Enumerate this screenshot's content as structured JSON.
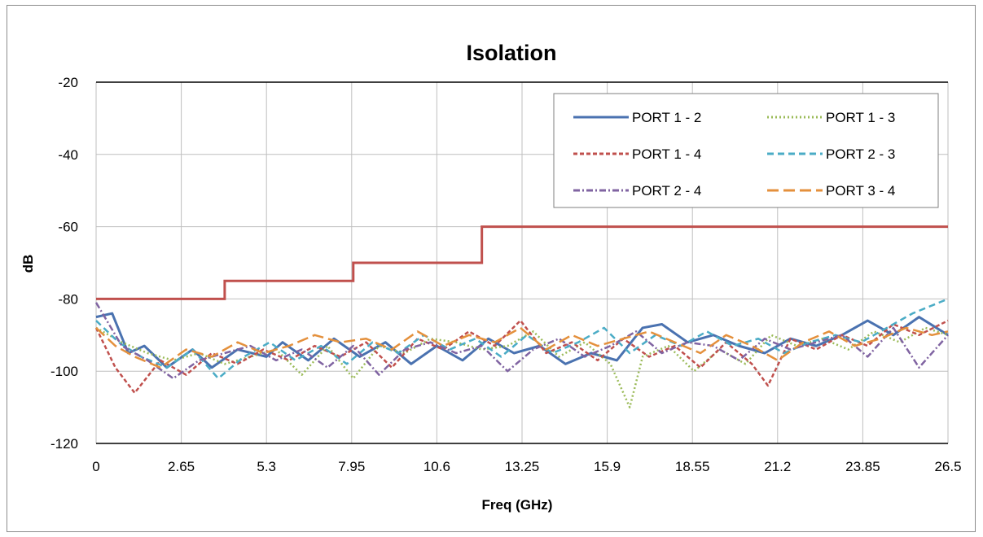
{
  "chart_data": {
    "type": "line",
    "title": "Isolation",
    "xlabel": "Freq (GHz)",
    "ylabel": "dB",
    "xlim": [
      0,
      26.5
    ],
    "ylim": [
      -120,
      -20
    ],
    "x_ticks": [
      "0",
      "2.65",
      "5.3",
      "7.95",
      "10.6",
      "13.25",
      "15.9",
      "18.55",
      "21.2",
      "23.85",
      "26.5"
    ],
    "y_ticks": [
      "-20",
      "-40",
      "-60",
      "-80",
      "-100",
      "-120"
    ],
    "grid": true,
    "legend_position": "top-right",
    "limit_line": {
      "color": "#c0504d",
      "steps": [
        [
          0,
          -80
        ],
        [
          4,
          -80
        ],
        [
          4,
          -75
        ],
        [
          8,
          -75
        ],
        [
          8,
          -70
        ],
        [
          12,
          -70
        ],
        [
          12,
          -60
        ],
        [
          26.5,
          -60
        ]
      ]
    },
    "series": [
      {
        "name": "PORT 1 - 2",
        "color": "#4a72b0",
        "dash": "",
        "width": 3,
        "x": [
          0,
          0.5,
          1,
          1.5,
          2.2,
          3,
          3.6,
          4.4,
          5.3,
          5.8,
          6.6,
          7.4,
          8.2,
          9,
          9.8,
          10.6,
          11.4,
          12.2,
          13,
          13.8,
          14.6,
          15.4,
          16.2,
          17,
          17.6,
          18.4,
          19.2,
          20,
          20.8,
          21.6,
          22.4,
          23.2,
          24,
          24.8,
          25.6,
          26.5
        ],
        "y": [
          -85,
          -84,
          -95,
          -93,
          -99,
          -94,
          -99,
          -94,
          -96,
          -92,
          -97,
          -91,
          -96,
          -92,
          -98,
          -93,
          -97,
          -91,
          -95,
          -93,
          -98,
          -95,
          -97,
          -88,
          -87,
          -92,
          -90,
          -93,
          -95,
          -91,
          -93,
          -90,
          -86,
          -90,
          -85,
          -90
        ]
      },
      {
        "name": "PORT 1 - 3",
        "color": "#9bbb59",
        "dash": "2,3",
        "width": 2.5,
        "x": [
          0,
          0.8,
          1.6,
          2.4,
          3.2,
          4,
          4.8,
          5.6,
          6.4,
          7.2,
          8,
          8.8,
          9.6,
          10.4,
          11.2,
          12,
          12.8,
          13.6,
          14.4,
          15.2,
          16,
          16.6,
          17,
          17.8,
          18.6,
          19.4,
          20.2,
          21,
          21.8,
          22.6,
          23.4,
          24.2,
          25,
          25.8,
          26.5
        ],
        "y": [
          -88,
          -92,
          -95,
          -97,
          -95,
          -98,
          -96,
          -94,
          -101,
          -93,
          -102,
          -93,
          -95,
          -91,
          -92,
          -94,
          -93,
          -89,
          -96,
          -92,
          -98,
          -110,
          -96,
          -93,
          -100,
          -94,
          -98,
          -90,
          -93,
          -91,
          -94,
          -89,
          -92,
          -88,
          -90
        ]
      },
      {
        "name": "PORT 1 - 4",
        "color": "#c0504d",
        "dash": "5,3",
        "width": 2.5,
        "x": [
          0,
          0.6,
          1.2,
          2,
          2.8,
          3.6,
          4.4,
          5.2,
          6,
          6.8,
          7.6,
          8.4,
          9.2,
          10,
          10.8,
          11.6,
          12.4,
          13.2,
          14,
          14.8,
          15.6,
          16.4,
          17.2,
          18,
          18.8,
          19.6,
          20.4,
          20.9,
          21.6,
          22.4,
          23.2,
          24,
          24.8,
          25.6,
          26.5
        ],
        "y": [
          -88,
          -99,
          -106,
          -97,
          -101,
          -95,
          -98,
          -94,
          -97,
          -93,
          -96,
          -92,
          -99,
          -91,
          -94,
          -89,
          -93,
          -86,
          -95,
          -92,
          -97,
          -91,
          -96,
          -93,
          -99,
          -92,
          -98,
          -104,
          -91,
          -94,
          -90,
          -93,
          -87,
          -90,
          -86
        ]
      },
      {
        "name": "PORT 2 - 3",
        "color": "#4bacc6",
        "dash": "8,5",
        "width": 2.5,
        "x": [
          0,
          0.7,
          1.4,
          2.2,
          3,
          3.8,
          4.6,
          5.4,
          6.2,
          7,
          7.8,
          8.6,
          9.4,
          10.2,
          11,
          11.8,
          12.6,
          13.4,
          14.2,
          15,
          15.8,
          16.6,
          17.4,
          18.2,
          19,
          19.8,
          20.6,
          21.4,
          22.2,
          23,
          23.8,
          24.6,
          25.4,
          26.5
        ],
        "y": [
          -86,
          -92,
          -96,
          -99,
          -94,
          -102,
          -96,
          -92,
          -97,
          -93,
          -98,
          -92,
          -95,
          -90,
          -94,
          -91,
          -96,
          -90,
          -95,
          -92,
          -88,
          -95,
          -90,
          -93,
          -89,
          -93,
          -91,
          -95,
          -92,
          -90,
          -92,
          -88,
          -84,
          -80
        ]
      },
      {
        "name": "PORT 2 - 4",
        "color": "#8064a2",
        "dash": "8,3,2,3",
        "width": 2.5,
        "x": [
          0,
          0.8,
          1.6,
          2.4,
          3.2,
          4,
          4.8,
          5.6,
          6.4,
          7.2,
          8,
          8.8,
          9.6,
          10.4,
          11.2,
          12,
          12.8,
          13.6,
          14.4,
          15.2,
          16,
          16.8,
          17.6,
          18.4,
          19.2,
          20,
          20.8,
          21.6,
          22.4,
          23.2,
          24,
          24.8,
          25.6,
          26.5
        ],
        "y": [
          -81,
          -93,
          -97,
          -102,
          -97,
          -95,
          -93,
          -97,
          -94,
          -99,
          -93,
          -101,
          -94,
          -92,
          -95,
          -93,
          -100,
          -94,
          -91,
          -96,
          -93,
          -89,
          -95,
          -92,
          -93,
          -97,
          -91,
          -94,
          -92,
          -90,
          -96,
          -88,
          -99,
          -90
        ]
      },
      {
        "name": "PORT 3 - 4",
        "color": "#e4903c",
        "dash": "14,6",
        "width": 2.5,
        "x": [
          0,
          0.6,
          1.2,
          2,
          2.8,
          3.6,
          4.4,
          5.2,
          6,
          6.8,
          7.6,
          8.4,
          9.2,
          10,
          10.8,
          11.6,
          12.4,
          13.2,
          14,
          14.8,
          15.6,
          16.4,
          17.2,
          18,
          18.8,
          19.6,
          20.4,
          21.2,
          22,
          22.8,
          23.6,
          24.4,
          25.2,
          26,
          26.5
        ],
        "y": [
          -88,
          -93,
          -96,
          -99,
          -94,
          -96,
          -92,
          -95,
          -93,
          -90,
          -92,
          -91,
          -94,
          -89,
          -93,
          -90,
          -92,
          -88,
          -94,
          -90,
          -93,
          -91,
          -89,
          -92,
          -95,
          -90,
          -93,
          -97,
          -92,
          -89,
          -93,
          -91,
          -88,
          -90,
          -89
        ]
      }
    ]
  }
}
